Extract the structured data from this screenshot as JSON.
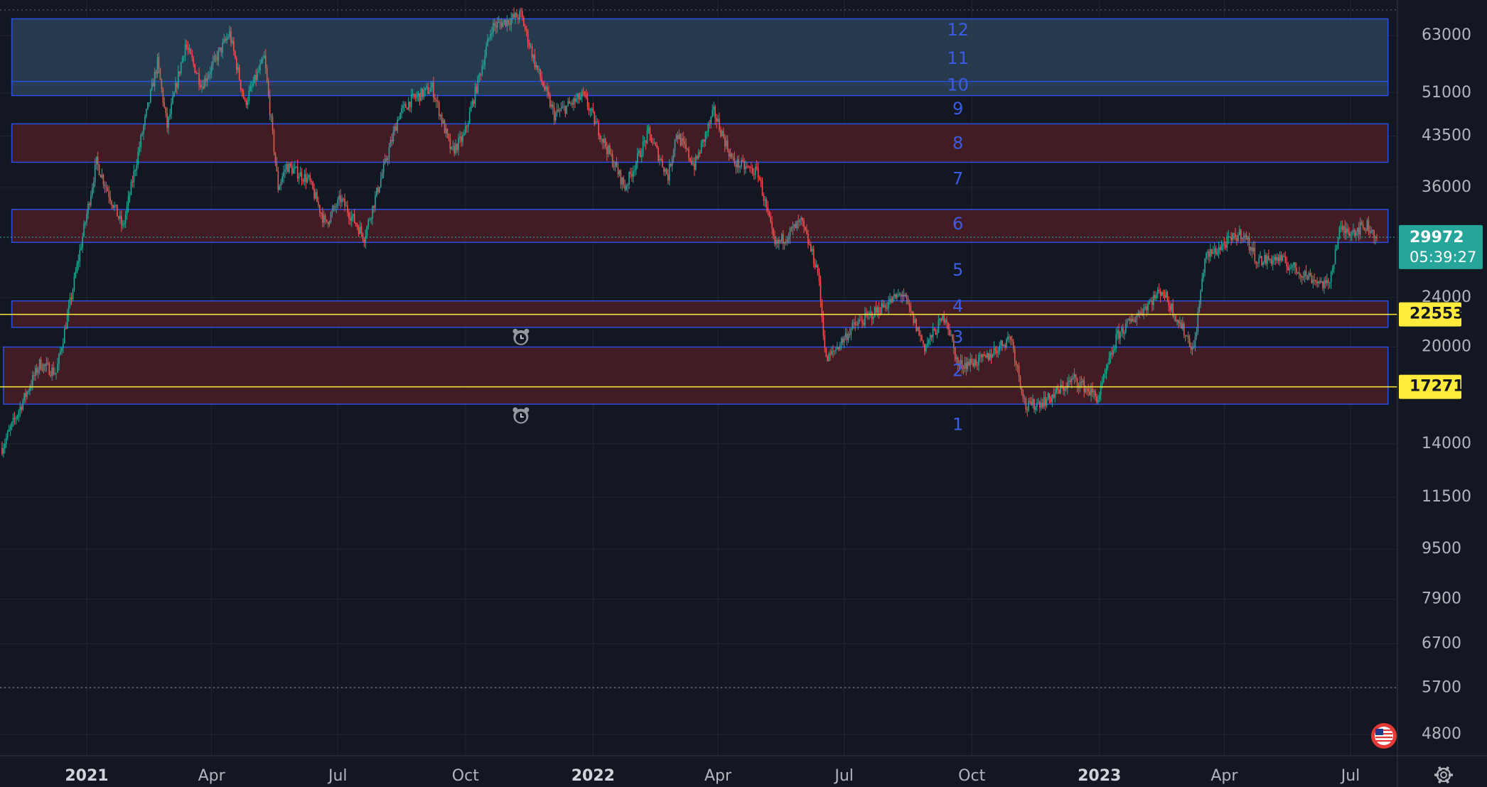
{
  "chart_data": {
    "type": "candlestick",
    "title": "",
    "scale": "log",
    "grid": true,
    "ylim": [
      4400,
      68000
    ],
    "y_ticks": [
      63000,
      51000,
      43500,
      36000,
      29972,
      24000,
      20000,
      14000,
      11500,
      9500,
      7900,
      6700,
      5700,
      4800
    ],
    "y_tick_labels": [
      "63000",
      "51000",
      "43500",
      "36000",
      "",
      "24000",
      "20000",
      "14000",
      "11500",
      "9500",
      "7900",
      "6700",
      "5700",
      "4800"
    ],
    "x_range": [
      "2020-11-01",
      "2023-07-25"
    ],
    "x_ticks": [
      {
        "date": "2021-01-01",
        "label": "2021",
        "bold": true
      },
      {
        "date": "2021-04-01",
        "label": "Apr",
        "bold": false
      },
      {
        "date": "2021-07-01",
        "label": "Jul",
        "bold": false
      },
      {
        "date": "2021-10-01",
        "label": "Oct",
        "bold": false
      },
      {
        "date": "2022-01-01",
        "label": "2022",
        "bold": true
      },
      {
        "date": "2022-04-01",
        "label": "Apr",
        "bold": false
      },
      {
        "date": "2022-07-01",
        "label": "Jul",
        "bold": false
      },
      {
        "date": "2022-10-01",
        "label": "Oct",
        "bold": false
      },
      {
        "date": "2023-01-01",
        "label": "2023",
        "bold": true
      },
      {
        "date": "2023-04-01",
        "label": "Apr",
        "bold": false
      },
      {
        "date": "2023-07-01",
        "label": "Jul",
        "bold": false
      }
    ],
    "price_path": [
      [
        "2020-11-01",
        13800
      ],
      [
        "2020-11-15",
        16200
      ],
      [
        "2020-11-28",
        18800
      ],
      [
        "2020-12-10",
        18200
      ],
      [
        "2020-12-20",
        23500
      ],
      [
        "2021-01-08",
        39500
      ],
      [
        "2021-01-27",
        31000
      ],
      [
        "2021-02-10",
        44000
      ],
      [
        "2021-02-21",
        57000
      ],
      [
        "2021-02-28",
        45000
      ],
      [
        "2021-03-13",
        61000
      ],
      [
        "2021-03-25",
        52500
      ],
      [
        "2021-04-14",
        63500
      ],
      [
        "2021-04-25",
        49000
      ],
      [
        "2021-05-09",
        58000
      ],
      [
        "2021-05-19",
        36000
      ],
      [
        "2021-05-25",
        39000
      ],
      [
        "2021-06-10",
        37000
      ],
      [
        "2021-06-22",
        31500
      ],
      [
        "2021-07-03",
        34500
      ],
      [
        "2021-07-20",
        30000
      ],
      [
        "2021-08-14",
        47000
      ],
      [
        "2021-08-22",
        49500
      ],
      [
        "2021-09-07",
        52000
      ],
      [
        "2021-09-21",
        41000
      ],
      [
        "2021-09-30",
        43500
      ],
      [
        "2021-10-20",
        65000
      ],
      [
        "2021-11-10",
        68000
      ],
      [
        "2021-11-20",
        57000
      ],
      [
        "2021-12-04",
        47000
      ],
      [
        "2021-12-25",
        50500
      ],
      [
        "2022-01-10",
        42000
      ],
      [
        "2022-01-24",
        36000
      ],
      [
        "2022-02-10",
        44000
      ],
      [
        "2022-02-24",
        37500
      ],
      [
        "2022-03-02",
        44000
      ],
      [
        "2022-03-15",
        39000
      ],
      [
        "2022-03-29",
        47500
      ],
      [
        "2022-04-12",
        39500
      ],
      [
        "2022-04-30",
        38000
      ],
      [
        "2022-05-12",
        29000
      ],
      [
        "2022-05-31",
        31700
      ],
      [
        "2022-06-12",
        26500
      ],
      [
        "2022-06-18",
        19000
      ],
      [
        "2022-07-07",
        21500
      ],
      [
        "2022-08-12",
        24400
      ],
      [
        "2022-08-28",
        20000
      ],
      [
        "2022-09-12",
        22500
      ],
      [
        "2022-09-21",
        18700
      ],
      [
        "2022-10-10",
        19100
      ],
      [
        "2022-10-29",
        20800
      ],
      [
        "2022-11-09",
        16000
      ],
      [
        "2022-11-25",
        16500
      ],
      [
        "2022-12-14",
        17800
      ],
      [
        "2022-12-31",
        16550
      ],
      [
        "2023-01-14",
        20900
      ],
      [
        "2023-02-15",
        24700
      ],
      [
        "2023-03-10",
        19800
      ],
      [
        "2023-03-18",
        27800
      ],
      [
        "2023-04-14",
        30500
      ],
      [
        "2023-04-25",
        27500
      ],
      [
        "2023-05-10",
        27700
      ],
      [
        "2023-05-25",
        26400
      ],
      [
        "2023-06-15",
        25000
      ],
      [
        "2023-06-23",
        30700
      ],
      [
        "2023-07-05",
        30800
      ],
      [
        "2023-07-13",
        31300
      ],
      [
        "2023-07-20",
        29972
      ]
    ],
    "zones": [
      {
        "from": 52500,
        "to": 67000,
        "x_start": "2020-11-08",
        "kind": "blue"
      },
      {
        "from": 50500,
        "to": 53200,
        "x_start": "2020-11-08",
        "kind": "blue"
      },
      {
        "from": 39500,
        "to": 45500,
        "x_start": "2020-11-08",
        "kind": "red"
      },
      {
        "from": 29400,
        "to": 33200,
        "x_start": "2020-11-08",
        "kind": "red"
      },
      {
        "from": 21500,
        "to": 23700,
        "x_start": "2020-11-08",
        "kind": "red"
      },
      {
        "from": 16200,
        "to": 20000,
        "x_start": "2020-11-02",
        "kind": "red"
      }
    ],
    "zone_numbers": [
      {
        "label": "12",
        "price": 64200
      },
      {
        "label": "11",
        "price": 57800
      },
      {
        "label": "10",
        "price": 52400
      },
      {
        "label": "9",
        "price": 48000
      },
      {
        "label": "8",
        "price": 42300
      },
      {
        "label": "7",
        "price": 37100
      },
      {
        "label": "6",
        "price": 31400
      },
      {
        "label": "5",
        "price": 26500
      },
      {
        "label": "4",
        "price": 23200
      },
      {
        "label": "3",
        "price": 20700
      },
      {
        "label": "2",
        "price": 18300
      },
      {
        "label": "1",
        "price": 15000
      }
    ],
    "horizontal_lines": [
      {
        "price": 22553,
        "label": "22553",
        "color": "#ffeb3b"
      },
      {
        "price": 17271,
        "label": "17271",
        "color": "#ffeb3b"
      }
    ],
    "alerts": [
      {
        "date": "2021-11-10",
        "price": 20700
      },
      {
        "date": "2021-11-10",
        "price": 15500
      }
    ],
    "current_price": {
      "value": 29972,
      "label": "29972",
      "countdown": "05:39:27",
      "color": "#26a69a"
    },
    "colors": {
      "background": "#131722",
      "grid": "#232632",
      "up": "#26a69a",
      "down": "#ef5350",
      "zone_border": "#2a4fe0",
      "zone_red_fill": "#4a1d26",
      "zone_blue_fill": "#2a4055",
      "zone_number": "#3a5ce6",
      "axis_text": "#b2b5be",
      "axis_text_bold": "#d1d4dc"
    }
  }
}
